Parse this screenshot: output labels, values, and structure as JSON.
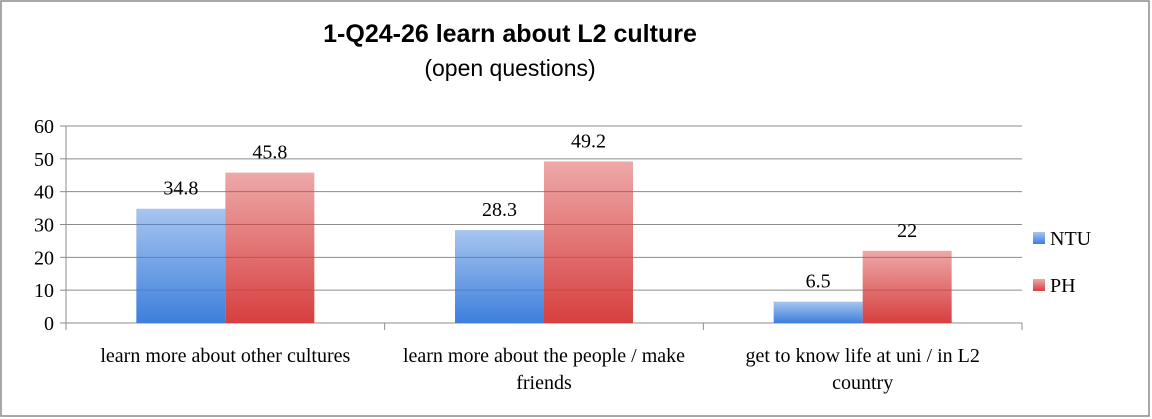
{
  "chart_data": {
    "type": "bar",
    "title": "1-Q24-26 learn about L2 culture",
    "subtitle": "(open questions)",
    "categories": [
      "learn more about other cultures",
      "learn more about the people / make friends",
      "get to know life at uni / in L2 country"
    ],
    "series": [
      {
        "name": "NTU",
        "color": "#3d7fdc",
        "values": [
          34.8,
          28.3,
          6.5
        ]
      },
      {
        "name": "PH",
        "color": "#d73f3f",
        "values": [
          45.8,
          49.2,
          22
        ]
      }
    ],
    "ylim": [
      0,
      60
    ],
    "yticks": [
      0,
      10,
      20,
      30,
      40,
      50,
      60
    ],
    "grid": true,
    "legend": "right"
  }
}
